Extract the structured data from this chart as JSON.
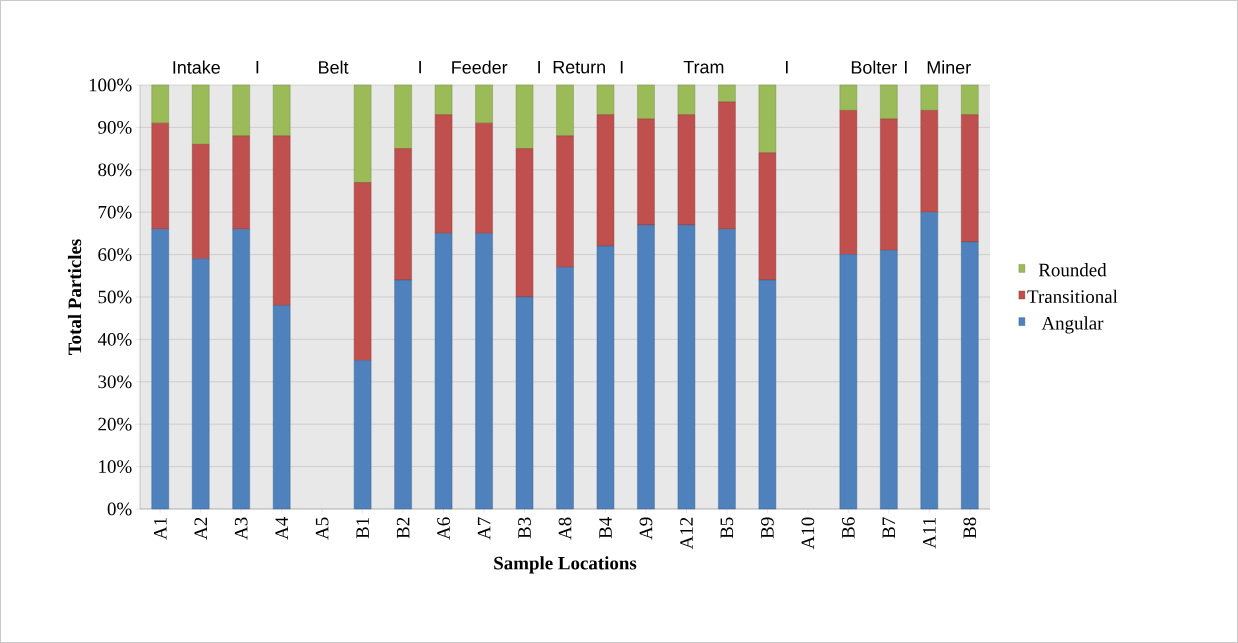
{
  "chart_data": {
    "type": "bar",
    "stacked": true,
    "xlabel": "Sample Locations",
    "ylabel": "Total Particles",
    "categories": [
      "A1",
      "A2",
      "A3",
      "A4",
      "A5",
      "B1",
      "B2",
      "A6",
      "A7",
      "B3",
      "A8",
      "B4",
      "A9",
      "A12",
      "B5",
      "B9",
      "A10",
      "B6",
      "B7",
      "A11",
      "B8"
    ],
    "series": [
      {
        "name": "Angular",
        "color": "#4f81bd",
        "values": [
          66,
          59,
          66,
          48,
          null,
          35,
          54,
          65,
          65,
          50,
          57,
          62,
          67,
          67,
          66,
          54,
          null,
          60,
          61,
          70,
          63
        ]
      },
      {
        "name": "Transitional",
        "color": "#c0504d",
        "values": [
          25,
          27,
          22,
          40,
          null,
          42,
          31,
          28,
          26,
          35,
          31,
          31,
          25,
          26,
          30,
          30,
          null,
          34,
          31,
          24,
          30
        ]
      },
      {
        "name": "Rounded",
        "color": "#9bbb59",
        "values": [
          9,
          14,
          12,
          12,
          null,
          23,
          15,
          7,
          9,
          15,
          12,
          7,
          8,
          7,
          4,
          16,
          null,
          6,
          8,
          6,
          7
        ]
      }
    ],
    "ylim": [
      0,
      100
    ],
    "yticks": [
      {
        "value": 0,
        "label": "0%"
      },
      {
        "value": 10,
        "label": "10%"
      },
      {
        "value": 20,
        "label": "20%"
      },
      {
        "value": 30,
        "label": "30%"
      },
      {
        "value": 40,
        "label": "40%"
      },
      {
        "value": 50,
        "label": "50%"
      },
      {
        "value": 60,
        "label": "60%"
      },
      {
        "value": 70,
        "label": "70%"
      },
      {
        "value": 80,
        "label": "80%"
      },
      {
        "value": 90,
        "label": "90%"
      },
      {
        "value": 100,
        "label": "100%"
      }
    ],
    "grid": "y",
    "legend": "right",
    "annotations": [
      "Intake",
      "I",
      "Belt",
      "I",
      "Feeder",
      "I",
      "Return",
      "I",
      "Tram",
      "I",
      "Bolter",
      "I",
      "Miner"
    ]
  }
}
